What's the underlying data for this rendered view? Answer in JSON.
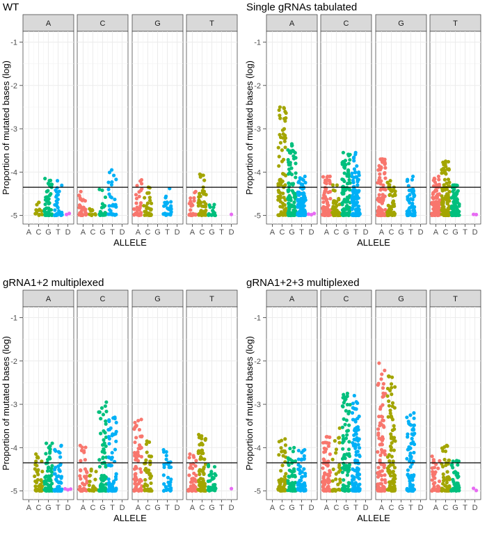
{
  "chart_data": [
    {
      "type": "scatter",
      "title": "WT",
      "xlabel": "ALLELE",
      "ylabel": "Proportion of mutated bases (log)",
      "facets": [
        "A",
        "C",
        "G",
        "T"
      ],
      "categories": [
        "A",
        "C",
        "G",
        "T",
        "D"
      ],
      "yticks": [
        -1,
        -2,
        -3,
        -4,
        -5
      ],
      "ytick_labels": [
        "-1",
        "-2",
        "-3",
        "-4",
        "-5"
      ],
      "ylim": [
        -5.2,
        -0.75
      ],
      "hline": -4.35,
      "groups": {
        "A": {
          "A": {
            "n": 0,
            "max": -5
          },
          "C": {
            "n": 14,
            "max": -4.7
          },
          "G": {
            "n": 55,
            "max": -4.15
          },
          "T": {
            "n": 40,
            "max": -4.2
          },
          "D": {
            "n": 2,
            "max": -5
          }
        },
        "C": {
          "A": {
            "n": 28,
            "max": -4.45
          },
          "C": {
            "n": 10,
            "max": -4.85
          },
          "G": {
            "n": 24,
            "max": -4.4
          },
          "T": {
            "n": 30,
            "max": -3.95
          },
          "D": {
            "n": 0,
            "max": -5
          }
        },
        "G": {
          "A": {
            "n": 35,
            "max": -4.18
          },
          "C": {
            "n": 28,
            "max": -4.35
          },
          "G": {
            "n": 0,
            "max": -5
          },
          "T": {
            "n": 30,
            "max": -4.38
          },
          "D": {
            "n": 0,
            "max": -5
          }
        },
        "T": {
          "A": {
            "n": 28,
            "max": -4.45
          },
          "C": {
            "n": 55,
            "max": -4.05
          },
          "G": {
            "n": 18,
            "max": -4.75
          },
          "T": {
            "n": 0,
            "max": -5
          },
          "D": {
            "n": 1,
            "max": -5
          }
        }
      }
    },
    {
      "type": "scatter",
      "title": "Single gRNAs tabulated",
      "xlabel": "ALLELE",
      "ylabel": "Proportion of mutated bases (log)",
      "facets": [
        "A",
        "C",
        "G",
        "T"
      ],
      "categories": [
        "A",
        "C",
        "G",
        "T",
        "D"
      ],
      "yticks": [
        -1,
        -2,
        -3,
        -4,
        -5
      ],
      "ytick_labels": [
        "-1",
        "-2",
        "-3",
        "-4",
        "-5"
      ],
      "ylim": [
        -5.2,
        -0.75
      ],
      "hline": -4.35,
      "groups": {
        "A": {
          "A": {
            "n": 0,
            "max": -5
          },
          "C": {
            "n": 85,
            "max": -2.5
          },
          "G": {
            "n": 120,
            "max": -3.35
          },
          "T": {
            "n": 110,
            "max": -4.1
          },
          "D": {
            "n": 3,
            "max": -5
          }
        },
        "C": {
          "A": {
            "n": 100,
            "max": -4.1
          },
          "C": {
            "n": 45,
            "max": -4.3
          },
          "G": {
            "n": 110,
            "max": -3.55
          },
          "T": {
            "n": 120,
            "max": -3.55
          },
          "D": {
            "n": 0,
            "max": -5
          }
        },
        "G": {
          "A": {
            "n": 110,
            "max": -3.7
          },
          "C": {
            "n": 60,
            "max": -4.2
          },
          "G": {
            "n": 0,
            "max": -5
          },
          "T": {
            "n": 80,
            "max": -4.1
          },
          "D": {
            "n": 0,
            "max": -5
          }
        },
        "T": {
          "A": {
            "n": 110,
            "max": -4.1
          },
          "C": {
            "n": 120,
            "max": -3.75
          },
          "G": {
            "n": 80,
            "max": -4.3
          },
          "T": {
            "n": 0,
            "max": -5
          },
          "D": {
            "n": 2,
            "max": -5
          }
        }
      }
    },
    {
      "type": "scatter",
      "title": "gRNA1+2 multiplexed",
      "xlabel": "ALLELE",
      "ylabel": "Proportion of mutated bases (log)",
      "facets": [
        "A",
        "C",
        "G",
        "T"
      ],
      "categories": [
        "A",
        "C",
        "G",
        "T",
        "D"
      ],
      "yticks": [
        -1,
        -2,
        -3,
        -4,
        -5
      ],
      "ytick_labels": [
        "-1",
        "-2",
        "-3",
        "-4",
        "-5"
      ],
      "ylim": [
        -5.2,
        -0.75
      ],
      "hline": -4.35,
      "groups": {
        "A": {
          "A": {
            "n": 0,
            "max": -5
          },
          "C": {
            "n": 45,
            "max": -4.15
          },
          "G": {
            "n": 75,
            "max": -3.9
          },
          "T": {
            "n": 60,
            "max": -3.95
          },
          "D": {
            "n": 3,
            "max": -4.75
          }
        },
        "C": {
          "A": {
            "n": 45,
            "max": -3.95
          },
          "C": {
            "n": 20,
            "max": -4.5
          },
          "G": {
            "n": 80,
            "max": -2.95
          },
          "T": {
            "n": 75,
            "max": -3.3
          },
          "D": {
            "n": 0,
            "max": -5
          }
        },
        "G": {
          "A": {
            "n": 70,
            "max": -3.35
          },
          "C": {
            "n": 50,
            "max": -3.85
          },
          "G": {
            "n": 0,
            "max": -5
          },
          "T": {
            "n": 35,
            "max": -4.05
          },
          "D": {
            "n": 0,
            "max": -5
          }
        },
        "T": {
          "A": {
            "n": 60,
            "max": -4.15
          },
          "C": {
            "n": 70,
            "max": -3.7
          },
          "G": {
            "n": 40,
            "max": -4.4
          },
          "T": {
            "n": 0,
            "max": -5
          },
          "D": {
            "n": 1,
            "max": -5
          }
        }
      }
    },
    {
      "type": "scatter",
      "title": "gRNA1+2+3 multiplexed",
      "xlabel": "ALLELE",
      "ylabel": "Proportion of mutated bases (log)",
      "facets": [
        "A",
        "C",
        "G",
        "T"
      ],
      "categories": [
        "A",
        "C",
        "G",
        "T",
        "D"
      ],
      "yticks": [
        -1,
        -2,
        -3,
        -4,
        -5
      ],
      "ytick_labels": [
        "-1",
        "-2",
        "-3",
        "-4",
        "-5"
      ],
      "ylim": [
        -5.2,
        -0.75
      ],
      "hline": -4.35,
      "groups": {
        "A": {
          "A": {
            "n": 0,
            "max": -5
          },
          "C": {
            "n": 50,
            "max": -3.8
          },
          "G": {
            "n": 60,
            "max": -4.0
          },
          "T": {
            "n": 60,
            "max": -4.05
          },
          "D": {
            "n": 0,
            "max": -5
          }
        },
        "C": {
          "A": {
            "n": 80,
            "max": -3.75
          },
          "C": {
            "n": 30,
            "max": -3.55
          },
          "G": {
            "n": 100,
            "max": -2.75
          },
          "T": {
            "n": 110,
            "max": -2.8
          },
          "D": {
            "n": 0,
            "max": -5
          }
        },
        "G": {
          "A": {
            "n": 110,
            "max": -2.05
          },
          "C": {
            "n": 100,
            "max": -2.35
          },
          "G": {
            "n": 0,
            "max": -5
          },
          "T": {
            "n": 80,
            "max": -3.2
          },
          "D": {
            "n": 0,
            "max": -5
          }
        },
        "T": {
          "A": {
            "n": 40,
            "max": -4.2
          },
          "C": {
            "n": 60,
            "max": -3.95
          },
          "G": {
            "n": 50,
            "max": -4.3
          },
          "T": {
            "n": 0,
            "max": -5
          },
          "D": {
            "n": 2,
            "max": -4.9
          }
        }
      }
    }
  ],
  "colors": {
    "A": "#F8766D",
    "C": "#A3A500",
    "G": "#00BF7D",
    "T": "#00B0F6",
    "D": "#E76BF3"
  }
}
